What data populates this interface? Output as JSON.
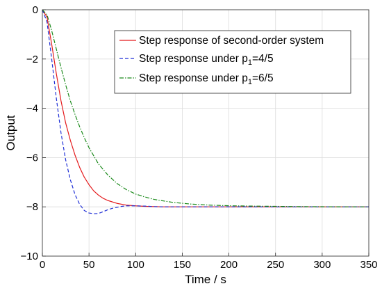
{
  "chart_data": {
    "type": "line",
    "title": "",
    "xlabel": "Time / s",
    "ylabel": "Output",
    "xlim": [
      0,
      350
    ],
    "ylim": [
      -10,
      0
    ],
    "xticks": [
      0,
      50,
      100,
      150,
      200,
      250,
      300,
      350
    ],
    "yticks": [
      0,
      -2,
      -4,
      -6,
      -8,
      -10
    ],
    "xtick_labels": [
      "0",
      "50",
      "100",
      "150",
      "200",
      "250",
      "300",
      "350"
    ],
    "ytick_labels": [
      "0",
      "−2",
      "−4",
      "−6",
      "−8",
      "−10"
    ],
    "grid": true,
    "legend_position": "top-right",
    "series": [
      {
        "name": "Step response of second-order system",
        "legend_main": "Step response of second-order system",
        "legend_sub": "",
        "legend_tail": "",
        "color": "#e41a1c",
        "style": "solid",
        "x": [
          0,
          5,
          10,
          15,
          20,
          25,
          30,
          35,
          40,
          45,
          50,
          55,
          60,
          65,
          70,
          80,
          90,
          100,
          110,
          120,
          130,
          150,
          175,
          200,
          250,
          300,
          350
        ],
        "y": [
          0,
          -0.3,
          -1.4,
          -2.6,
          -3.7,
          -4.6,
          -5.3,
          -5.9,
          -6.4,
          -6.8,
          -7.1,
          -7.35,
          -7.52,
          -7.65,
          -7.74,
          -7.86,
          -7.93,
          -7.96,
          -7.98,
          -7.99,
          -8.0,
          -8.0,
          -8.0,
          -8.0,
          -8.0,
          -8.0,
          -8.0
        ]
      },
      {
        "name": "Step response under p1=4/5",
        "legend_main": "Step response under p",
        "legend_sub": "1",
        "legend_tail": "=4/5",
        "color": "#1f2fd6",
        "style": "dashed",
        "x": [
          0,
          5,
          10,
          15,
          20,
          25,
          30,
          35,
          40,
          45,
          50,
          55,
          60,
          65,
          70,
          75,
          80,
          85,
          90,
          100,
          110,
          120,
          130,
          150,
          175,
          200,
          250,
          300,
          350
        ],
        "y": [
          0,
          -0.5,
          -2.0,
          -3.6,
          -5.0,
          -6.1,
          -6.9,
          -7.5,
          -7.9,
          -8.15,
          -8.25,
          -8.28,
          -8.27,
          -8.2,
          -8.12,
          -8.06,
          -8.02,
          -7.98,
          -7.96,
          -7.96,
          -7.97,
          -7.99,
          -8.0,
          -8.0,
          -8.0,
          -8.0,
          -8.0,
          -8.0,
          -8.0
        ]
      },
      {
        "name": "Step response under p1=6/5",
        "legend_main": "Step response under p",
        "legend_sub": "1",
        "legend_tail": "=6/5",
        "color": "#1b8a1b",
        "style": "dashdot",
        "x": [
          0,
          5,
          10,
          15,
          20,
          25,
          30,
          35,
          40,
          45,
          50,
          60,
          70,
          80,
          90,
          100,
          110,
          120,
          140,
          160,
          180,
          200,
          225,
          250,
          275,
          300,
          325,
          350
        ],
        "y": [
          0,
          -0.2,
          -0.85,
          -1.6,
          -2.35,
          -3.05,
          -3.7,
          -4.25,
          -4.75,
          -5.2,
          -5.6,
          -6.25,
          -6.7,
          -7.05,
          -7.3,
          -7.48,
          -7.6,
          -7.7,
          -7.82,
          -7.89,
          -7.93,
          -7.955,
          -7.97,
          -7.98,
          -7.99,
          -7.995,
          -8.0,
          -8.0
        ]
      }
    ]
  }
}
